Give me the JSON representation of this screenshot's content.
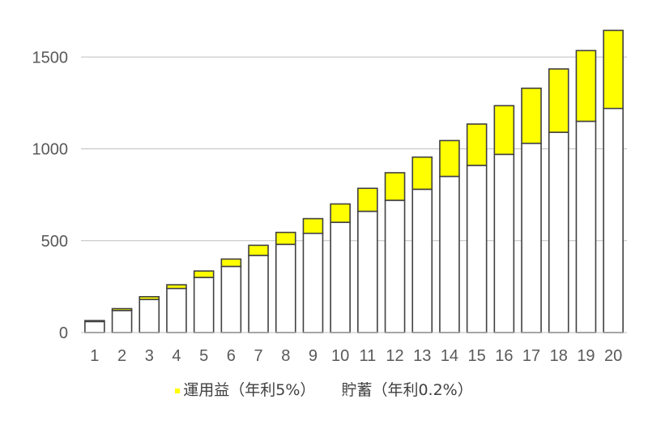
{
  "chart_data": {
    "type": "bar",
    "stacked": true,
    "categories": [
      "1",
      "2",
      "3",
      "4",
      "5",
      "6",
      "7",
      "8",
      "9",
      "10",
      "11",
      "12",
      "13",
      "14",
      "15",
      "16",
      "17",
      "18",
      "19",
      "20"
    ],
    "series": [
      {
        "name": "貯蓄（年利0.2%）",
        "color": "#ffffff",
        "values": [
          60,
          120,
          180,
          240,
          300,
          360,
          420,
          480,
          540,
          600,
          660,
          720,
          780,
          850,
          910,
          970,
          1030,
          1090,
          1150,
          1220
        ]
      },
      {
        "name": "運用益（年利5%）",
        "color": "#ffff00",
        "values": [
          5,
          10,
          15,
          20,
          35,
          40,
          55,
          65,
          80,
          100,
          125,
          150,
          175,
          195,
          225,
          265,
          300,
          345,
          385,
          425
        ]
      }
    ],
    "ylim": [
      0,
      1700
    ],
    "yticks": [
      0,
      500,
      1000,
      1500
    ],
    "grid": true,
    "legend_position": "bottom",
    "bar_border_color": "#404040",
    "grid_color": "#bfbfbf",
    "title": "",
    "xlabel": "",
    "ylabel": ""
  }
}
